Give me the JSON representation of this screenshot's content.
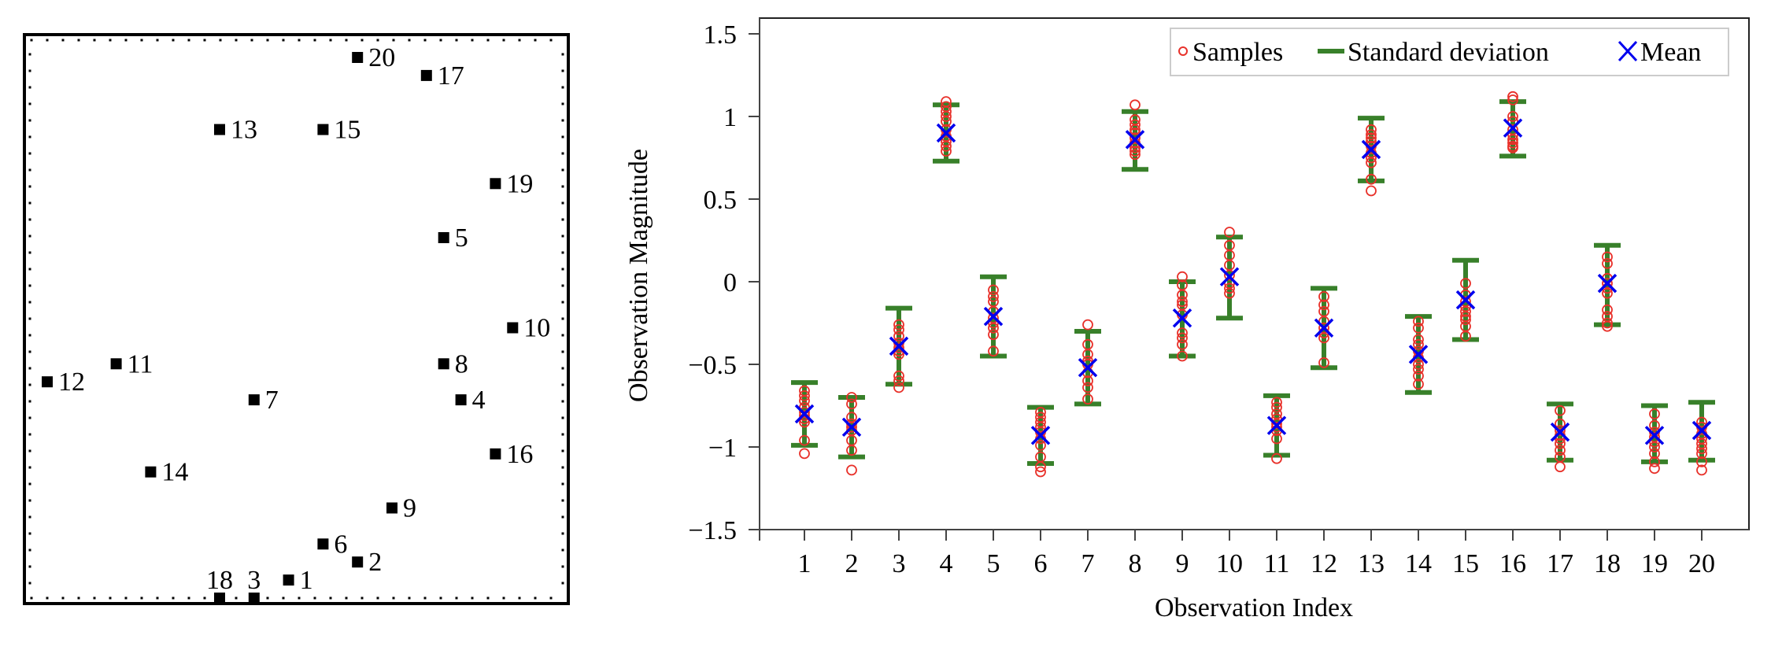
{
  "chart_data": [
    {
      "type": "scatter",
      "title": "",
      "xlabel": "",
      "ylabel": "",
      "grid": false,
      "frame": "dotted-border",
      "xlim": [
        0,
        30
      ],
      "ylim": [
        0,
        30
      ],
      "marker": "square",
      "marker_color": "#000000",
      "points": [
        {
          "label": "1",
          "x": 14,
          "y": 1,
          "label_pos": "right"
        },
        {
          "label": "2",
          "x": 18,
          "y": 2,
          "label_pos": "right"
        },
        {
          "label": "3",
          "x": 12,
          "y": 0,
          "label_pos": "above"
        },
        {
          "label": "4",
          "x": 24,
          "y": 11,
          "label_pos": "right"
        },
        {
          "label": "5",
          "x": 23,
          "y": 20,
          "label_pos": "right"
        },
        {
          "label": "6",
          "x": 16,
          "y": 3,
          "label_pos": "right"
        },
        {
          "label": "7",
          "x": 12,
          "y": 11,
          "label_pos": "right"
        },
        {
          "label": "8",
          "x": 23,
          "y": 13,
          "label_pos": "right"
        },
        {
          "label": "9",
          "x": 20,
          "y": 5,
          "label_pos": "right"
        },
        {
          "label": "10",
          "x": 27,
          "y": 15,
          "label_pos": "right"
        },
        {
          "label": "11",
          "x": 4,
          "y": 13,
          "label_pos": "right"
        },
        {
          "label": "12",
          "x": 0,
          "y": 12,
          "label_pos": "right"
        },
        {
          "label": "13",
          "x": 10,
          "y": 26,
          "label_pos": "right"
        },
        {
          "label": "14",
          "x": 6,
          "y": 7,
          "label_pos": "right"
        },
        {
          "label": "15",
          "x": 16,
          "y": 26,
          "label_pos": "right"
        },
        {
          "label": "16",
          "x": 26,
          "y": 8,
          "label_pos": "right"
        },
        {
          "label": "17",
          "x": 22,
          "y": 29,
          "label_pos": "right"
        },
        {
          "label": "18",
          "x": 10,
          "y": 0,
          "label_pos": "above"
        },
        {
          "label": "19",
          "x": 26,
          "y": 23,
          "label_pos": "right"
        },
        {
          "label": "20",
          "x": 18,
          "y": 30,
          "label_pos": "right"
        }
      ]
    },
    {
      "type": "errorbar",
      "title": "",
      "xlabel": "Observation Index",
      "ylabel": "Observation Magnitude",
      "xlim": [
        0,
        20.8
      ],
      "ylim": [
        -1.5,
        1.6
      ],
      "xticks": [
        1,
        2,
        3,
        4,
        5,
        6,
        7,
        8,
        9,
        10,
        11,
        12,
        13,
        14,
        15,
        16,
        17,
        18,
        19,
        20
      ],
      "xtick_labels": [
        "1",
        "2",
        "3",
        "4",
        "5",
        "6",
        "7",
        "8",
        "9",
        "10",
        "11",
        "12",
        "13",
        "14",
        "15",
        "16",
        "17",
        "18",
        "19",
        "20"
      ],
      "yticks": [
        -1.5,
        -1,
        -0.5,
        0,
        0.5,
        1,
        1.5
      ],
      "ytick_labels": [
        "−1.5",
        "−1",
        "−0.5",
        "0",
        "0.5",
        "1",
        "1.5"
      ],
      "grid": false,
      "legend_position": "top-right",
      "legend": [
        {
          "name": "Samples",
          "symbol": "circle",
          "color": "#e8312a"
        },
        {
          "name": "Standard deviation",
          "symbol": "line",
          "color": "#38802a"
        },
        {
          "name": "Mean",
          "symbol": "cross",
          "color": "#0000ee"
        }
      ],
      "series": [
        {
          "x": 1,
          "mean": -0.8,
          "std_upper": -0.61,
          "std_lower": -0.99,
          "samples": [
            -0.66,
            -0.69,
            -0.72,
            -0.76,
            -0.79,
            -0.81,
            -0.83,
            -0.85,
            -0.96,
            -1.04
          ]
        },
        {
          "x": 2,
          "mean": -0.88,
          "std_upper": -0.7,
          "std_lower": -1.06,
          "samples": [
            -0.7,
            -0.74,
            -0.82,
            -0.86,
            -0.88,
            -0.9,
            -0.96,
            -1.02,
            -1.14
          ]
        },
        {
          "x": 3,
          "mean": -0.39,
          "std_upper": -0.16,
          "std_lower": -0.62,
          "samples": [
            -0.26,
            -0.29,
            -0.33,
            -0.37,
            -0.4,
            -0.42,
            -0.44,
            -0.57,
            -0.6,
            -0.64
          ]
        },
        {
          "x": 4,
          "mean": 0.9,
          "std_upper": 1.07,
          "std_lower": 0.73,
          "samples": [
            1.09,
            1.06,
            1.03,
            1.0,
            0.97,
            0.92,
            0.88,
            0.85,
            0.82,
            0.79
          ]
        },
        {
          "x": 5,
          "mean": -0.21,
          "std_upper": 0.03,
          "std_lower": -0.45,
          "samples": [
            -0.05,
            -0.09,
            -0.12,
            -0.18,
            -0.22,
            -0.25,
            -0.28,
            -0.32,
            -0.42
          ]
        },
        {
          "x": 6,
          "mean": -0.93,
          "std_upper": -0.76,
          "std_lower": -1.1,
          "samples": [
            -0.79,
            -0.82,
            -0.85,
            -0.88,
            -0.91,
            -0.95,
            -0.99,
            -1.06,
            -1.12,
            -1.15
          ]
        },
        {
          "x": 7,
          "mean": -0.52,
          "std_upper": -0.3,
          "std_lower": -0.74,
          "samples": [
            -0.26,
            -0.38,
            -0.44,
            -0.48,
            -0.5,
            -0.55,
            -0.6,
            -0.64,
            -0.71
          ]
        },
        {
          "x": 8,
          "mean": 0.86,
          "std_upper": 1.03,
          "std_lower": 0.68,
          "samples": [
            1.07,
            0.98,
            0.95,
            0.92,
            0.9,
            0.87,
            0.84,
            0.81,
            0.79,
            0.77
          ]
        },
        {
          "x": 9,
          "mean": -0.22,
          "std_upper": 0.0,
          "std_lower": -0.45,
          "samples": [
            0.03,
            -0.02,
            -0.08,
            -0.12,
            -0.14,
            -0.2,
            -0.31,
            -0.34,
            -0.38,
            -0.45
          ]
        },
        {
          "x": 10,
          "mean": 0.03,
          "std_upper": 0.27,
          "std_lower": -0.22,
          "samples": [
            0.3,
            0.22,
            0.16,
            0.1,
            0.04,
            -0.01,
            -0.04,
            -0.07
          ]
        },
        {
          "x": 11,
          "mean": -0.87,
          "std_upper": -0.69,
          "std_lower": -1.05,
          "samples": [
            -0.73,
            -0.76,
            -0.8,
            -0.83,
            -0.86,
            -0.88,
            -0.9,
            -0.95,
            -1.07
          ]
        },
        {
          "x": 12,
          "mean": -0.28,
          "std_upper": -0.04,
          "std_lower": -0.52,
          "samples": [
            -0.09,
            -0.14,
            -0.18,
            -0.24,
            -0.28,
            -0.31,
            -0.34,
            -0.49
          ]
        },
        {
          "x": 13,
          "mean": 0.8,
          "std_upper": 0.99,
          "std_lower": 0.61,
          "samples": [
            0.92,
            0.89,
            0.87,
            0.85,
            0.82,
            0.78,
            0.75,
            0.72,
            0.62,
            0.55
          ]
        },
        {
          "x": 14,
          "mean": -0.44,
          "std_upper": -0.21,
          "std_lower": -0.67,
          "samples": [
            -0.24,
            -0.28,
            -0.35,
            -0.38,
            -0.42,
            -0.46,
            -0.5,
            -0.53,
            -0.57,
            -0.62
          ]
        },
        {
          "x": 15,
          "mean": -0.11,
          "std_upper": 0.13,
          "std_lower": -0.35,
          "samples": [
            -0.01,
            -0.08,
            -0.12,
            -0.15,
            -0.18,
            -0.21,
            -0.23,
            -0.27,
            -0.33
          ]
        },
        {
          "x": 16,
          "mean": 0.93,
          "std_upper": 1.09,
          "std_lower": 0.76,
          "samples": [
            1.12,
            1.1,
            1.0,
            0.97,
            0.92,
            0.89,
            0.86,
            0.84,
            0.82,
            0.81
          ]
        },
        {
          "x": 17,
          "mean": -0.91,
          "std_upper": -0.74,
          "std_lower": -1.08,
          "samples": [
            -0.78,
            -0.86,
            -0.9,
            -0.93,
            -0.95,
            -0.98,
            -1.02,
            -1.06,
            -1.12
          ]
        },
        {
          "x": 18,
          "mean": -0.01,
          "std_upper": 0.22,
          "std_lower": -0.26,
          "samples": [
            0.15,
            0.11,
            0.02,
            -0.01,
            -0.04,
            -0.07,
            -0.17,
            -0.21,
            -0.25,
            -0.27
          ]
        },
        {
          "x": 19,
          "mean": -0.93,
          "std_upper": -0.75,
          "std_lower": -1.09,
          "samples": [
            -0.8,
            -0.87,
            -0.91,
            -0.94,
            -0.97,
            -1.0,
            -1.04,
            -1.09,
            -1.13
          ]
        },
        {
          "x": 20,
          "mean": -0.9,
          "std_upper": -0.73,
          "std_lower": -1.08,
          "samples": [
            -0.85,
            -0.88,
            -0.92,
            -0.95,
            -0.98,
            -1.01,
            -1.04,
            -1.09,
            -1.14
          ]
        }
      ]
    }
  ]
}
